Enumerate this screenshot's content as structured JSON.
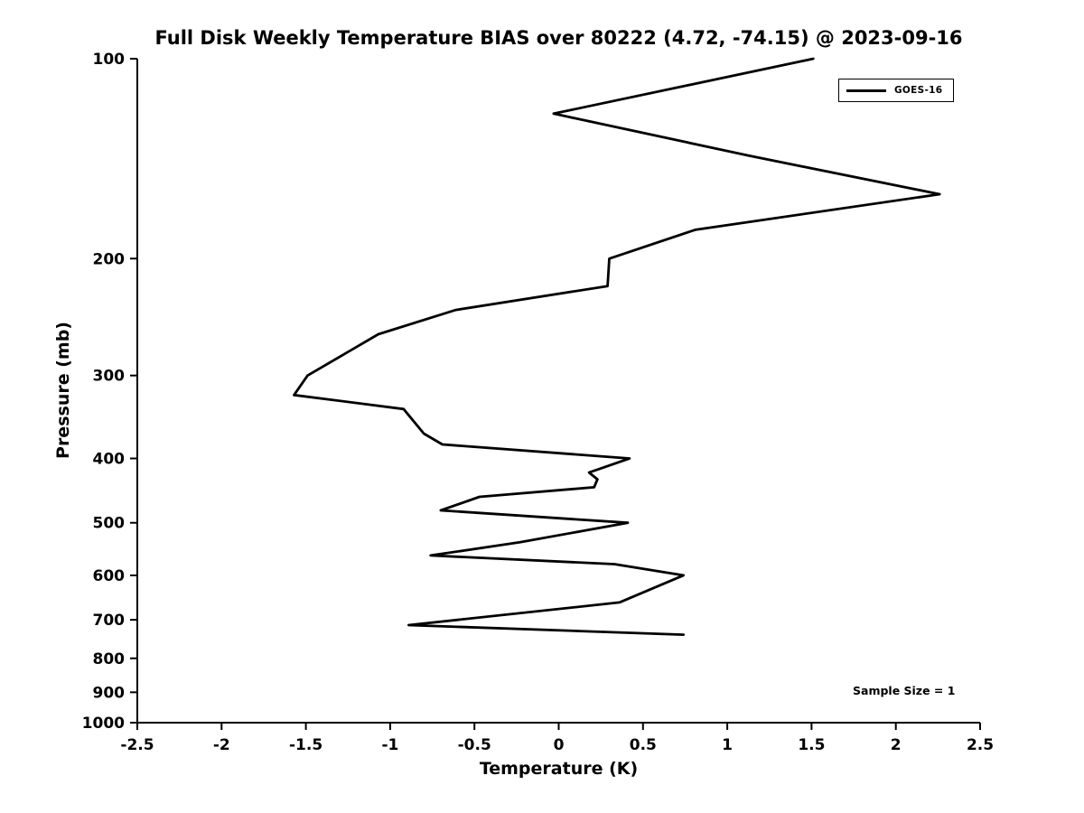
{
  "chart_data": {
    "type": "line",
    "title": "Full Disk Weekly Temperature BIAS over 80222 (4.72, -74.15) @ 2023-09-16",
    "xlabel": "Temperature (K)",
    "ylabel": "Pressure (mb)",
    "xlim": [
      -2.5,
      2.5
    ],
    "ylim": [
      1000,
      100
    ],
    "yscale": "log",
    "y_inverted": true,
    "grid": false,
    "background_color": "#ffffff",
    "axis_color": "#000000",
    "xticks": [
      -2.5,
      -2,
      -1.5,
      -1,
      -0.5,
      0,
      0.5,
      1,
      1.5,
      2,
      2.5
    ],
    "xtick_labels": [
      "-2.5",
      "-2",
      "-1.5",
      "-1",
      "-0.5",
      "0",
      "0.5",
      "1",
      "1.5",
      "2",
      "2.5"
    ],
    "yticks": [
      100,
      200,
      300,
      400,
      500,
      600,
      700,
      800,
      900,
      1000
    ],
    "ytick_labels": [
      "100",
      "200",
      "300",
      "400",
      "500",
      "600",
      "700",
      "800",
      "900",
      "1000"
    ],
    "legend": {
      "position": "upper right",
      "entries": [
        {
          "label": "GOES-16",
          "color": "#000000"
        }
      ]
    },
    "annotation": {
      "text": "Sample Size = 1"
    },
    "series": [
      {
        "name": "GOES-16",
        "color": "#000000",
        "line_width": 2.8,
        "points": [
          [
            1.51,
            100
          ],
          [
            -0.03,
            121
          ],
          [
            1.13,
            140
          ],
          [
            2.26,
            160
          ],
          [
            0.81,
            181
          ],
          [
            0.3,
            200
          ],
          [
            0.29,
            220
          ],
          [
            -0.61,
            239
          ],
          [
            -1.07,
            260
          ],
          [
            -1.49,
            300
          ],
          [
            -1.57,
            321
          ],
          [
            -0.92,
            337
          ],
          [
            -0.8,
            367
          ],
          [
            -0.69,
            381
          ],
          [
            0.42,
            400
          ],
          [
            0.18,
            420
          ],
          [
            0.23,
            430
          ],
          [
            0.21,
            442
          ],
          [
            -0.47,
            457
          ],
          [
            -0.7,
            479
          ],
          [
            0.41,
            500
          ],
          [
            -0.23,
            535
          ],
          [
            -0.76,
            560
          ],
          [
            0.33,
            577
          ],
          [
            0.74,
            600
          ],
          [
            0.36,
            659
          ],
          [
            -0.89,
            713
          ],
          [
            0.74,
            737
          ]
        ]
      }
    ]
  }
}
